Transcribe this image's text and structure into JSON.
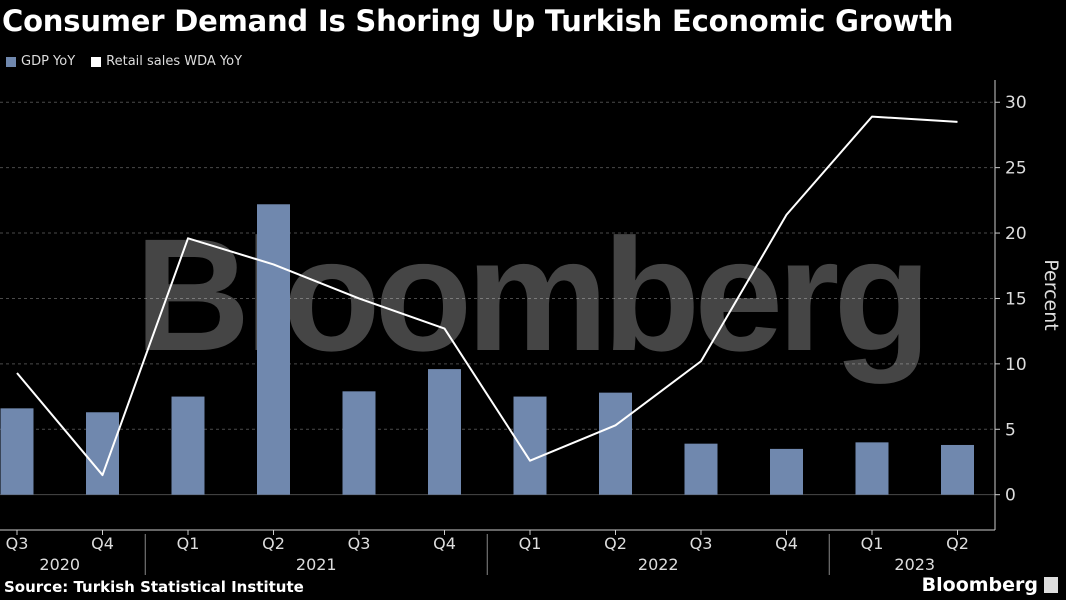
{
  "title": "Consumer Demand Is Shoring Up Turkish Economic Growth",
  "legend": [
    {
      "label": "GDP YoY",
      "color": "#7088ae"
    },
    {
      "label": "Retail sales WDA YoY",
      "color": "#ffffff"
    }
  ],
  "watermark": "Bloomberg",
  "source": "Source: Turkish Statistical Institute",
  "brand": "Bloomberg",
  "chart_data": {
    "type": "bar",
    "categories": [
      "Q3",
      "Q4",
      "Q1",
      "Q2",
      "Q3",
      "Q4",
      "Q1",
      "Q2",
      "Q3",
      "Q4",
      "Q1",
      "Q2"
    ],
    "years": [
      {
        "label": "2020",
        "start": 0,
        "end": 1
      },
      {
        "label": "2021",
        "start": 2,
        "end": 5
      },
      {
        "label": "2022",
        "start": 6,
        "end": 9
      },
      {
        "label": "2023",
        "start": 10,
        "end": 11
      }
    ],
    "series": [
      {
        "name": "GDP YoY",
        "type": "bar",
        "color": "#7088ae",
        "values": [
          6.6,
          6.3,
          7.5,
          22.2,
          7.9,
          9.6,
          7.5,
          7.8,
          3.9,
          3.5,
          4.0,
          3.8
        ]
      },
      {
        "name": "Retail sales WDA YoY",
        "type": "line",
        "color": "#ffffff",
        "values": [
          9.3,
          1.5,
          19.6,
          17.6,
          15.0,
          12.7,
          2.6,
          5.3,
          10.2,
          21.4,
          28.9,
          28.5
        ]
      }
    ],
    "ylabel": "Percent",
    "yticks": [
      0,
      5,
      10,
      15,
      20,
      25,
      30
    ],
    "ylim": [
      -2.7,
      31.7
    ],
    "grid": true,
    "legend_position": "top-left"
  }
}
